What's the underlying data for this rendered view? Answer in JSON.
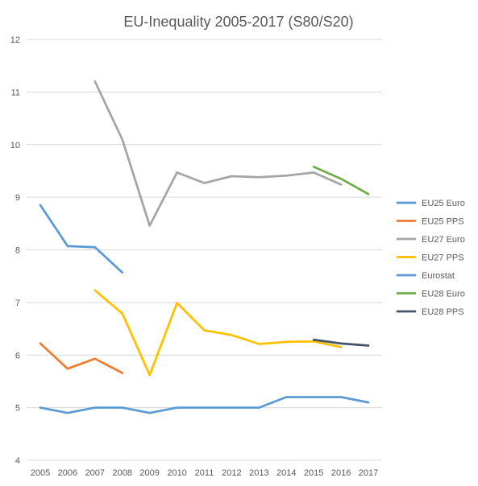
{
  "chart_data": {
    "type": "line",
    "title": "EU-Inequality 2005-2017 (S80/S20)",
    "xlabel": "",
    "ylabel": "",
    "categories": [
      "2005",
      "2006",
      "2007",
      "2008",
      "2009",
      "2010",
      "2011",
      "2012",
      "2013",
      "2014",
      "2015",
      "2016",
      "2017"
    ],
    "ylim": [
      4,
      12
    ],
    "yticks": [
      "4",
      "5",
      "6",
      "7",
      "8",
      "9",
      "10",
      "11",
      "12"
    ],
    "grid": true,
    "legend_position": "right",
    "series": [
      {
        "name": "EU25 Euro",
        "color": "#5b9bd5",
        "values": [
          8.85,
          8.07,
          8.05,
          7.57,
          null,
          null,
          null,
          null,
          null,
          null,
          null,
          null,
          null
        ]
      },
      {
        "name": "EU25 PPS",
        "color": "#ed7d31",
        "values": [
          6.22,
          5.74,
          5.93,
          5.66,
          null,
          null,
          null,
          null,
          null,
          null,
          null,
          null,
          null
        ]
      },
      {
        "name": "EU27 Euro",
        "color": "#a5a5a5",
        "values": [
          null,
          null,
          11.2,
          10.1,
          8.46,
          9.47,
          9.27,
          9.4,
          9.38,
          9.41,
          9.47,
          9.24,
          null
        ]
      },
      {
        "name": "EU27 PPS",
        "color": "#ffc000",
        "values": [
          null,
          null,
          7.23,
          6.79,
          5.62,
          6.99,
          6.47,
          6.38,
          6.21,
          6.25,
          6.26,
          6.15,
          null
        ]
      },
      {
        "name": "Eurostat",
        "color": "#5b9bd5",
        "values": [
          5.0,
          4.9,
          5.0,
          5.0,
          4.9,
          5.0,
          5.0,
          5.0,
          5.0,
          5.2,
          5.2,
          5.2,
          5.1
        ]
      },
      {
        "name": "EU28 Euro",
        "color": "#70ad47",
        "values": [
          null,
          null,
          null,
          null,
          null,
          null,
          null,
          null,
          null,
          null,
          9.58,
          9.35,
          9.06
        ]
      },
      {
        "name": "EU28 PPS",
        "color": "#44546a",
        "values": [
          null,
          null,
          null,
          null,
          null,
          null,
          null,
          null,
          null,
          null,
          6.29,
          6.22,
          6.18
        ]
      }
    ]
  }
}
